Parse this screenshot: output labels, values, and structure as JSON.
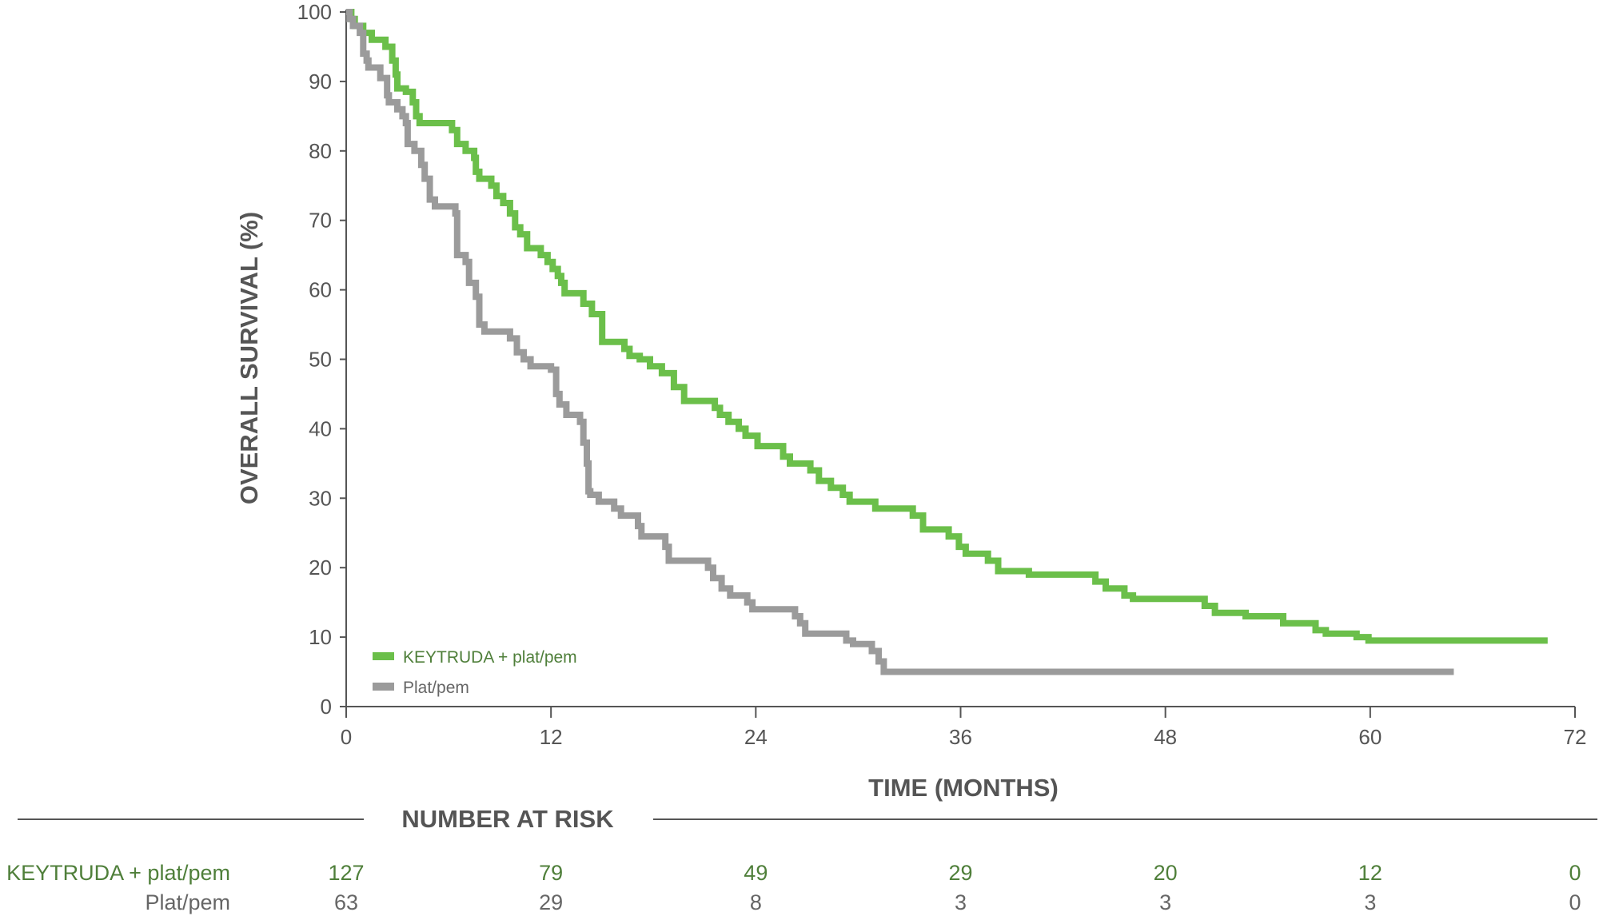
{
  "chart_data": {
    "type": "line",
    "subtype": "kaplan-meier step",
    "ylabel": "OVERALL SURVIVAL (%)",
    "xlabel": "TIME (MONTHS)",
    "ylim": [
      0,
      100
    ],
    "xlim": [
      0,
      72
    ],
    "y_ticks": [
      "0",
      "10",
      "20",
      "30",
      "40",
      "50",
      "60",
      "70",
      "80",
      "90",
      "100"
    ],
    "x_ticks": [
      "0",
      "12",
      "24",
      "36",
      "48",
      "60",
      "72"
    ],
    "grid": false,
    "legend_position": "bottom-left",
    "series": [
      {
        "name": "KEYTRUDA + plat/pem",
        "color": "#6bbf4a",
        "points": [
          [
            0,
            100
          ],
          [
            0.3,
            99
          ],
          [
            0.5,
            98
          ],
          [
            1,
            97
          ],
          [
            1.5,
            96
          ],
          [
            2.3,
            95
          ],
          [
            2.7,
            93
          ],
          [
            2.9,
            91
          ],
          [
            3,
            89
          ],
          [
            3.5,
            88.5
          ],
          [
            3.9,
            87
          ],
          [
            4.1,
            85
          ],
          [
            4.3,
            84
          ],
          [
            6,
            84
          ],
          [
            6.2,
            83
          ],
          [
            6.5,
            81
          ],
          [
            7,
            80
          ],
          [
            7.5,
            79
          ],
          [
            7.6,
            77
          ],
          [
            7.8,
            76
          ],
          [
            8.5,
            75
          ],
          [
            8.8,
            73.5
          ],
          [
            9.2,
            72.5
          ],
          [
            9.6,
            71
          ],
          [
            9.9,
            69
          ],
          [
            10.2,
            68
          ],
          [
            10.6,
            66
          ],
          [
            11.4,
            65
          ],
          [
            11.8,
            64
          ],
          [
            12.1,
            63
          ],
          [
            12.4,
            62
          ],
          [
            12.6,
            61
          ],
          [
            12.8,
            59.5
          ],
          [
            13.9,
            58
          ],
          [
            14.4,
            56.5
          ],
          [
            15,
            52.5
          ],
          [
            16.3,
            51.5
          ],
          [
            16.6,
            50.5
          ],
          [
            17.2,
            50
          ],
          [
            17.8,
            49
          ],
          [
            18.5,
            48
          ],
          [
            19.2,
            46
          ],
          [
            19.8,
            44
          ],
          [
            21.6,
            43
          ],
          [
            21.9,
            42
          ],
          [
            22.4,
            41
          ],
          [
            23,
            40
          ],
          [
            23.4,
            39
          ],
          [
            24.1,
            37.5
          ],
          [
            25.6,
            36
          ],
          [
            26,
            35
          ],
          [
            27.2,
            34
          ],
          [
            27.7,
            32.5
          ],
          [
            28.4,
            31.5
          ],
          [
            29.1,
            30.5
          ],
          [
            29.5,
            29.5
          ],
          [
            31,
            28.5
          ],
          [
            33.2,
            27.5
          ],
          [
            33.8,
            25.5
          ],
          [
            35.3,
            24.5
          ],
          [
            35.9,
            23
          ],
          [
            36.3,
            22
          ],
          [
            37.6,
            21
          ],
          [
            38.2,
            19.5
          ],
          [
            40,
            19
          ],
          [
            43.9,
            18
          ],
          [
            44.5,
            17
          ],
          [
            45.6,
            16
          ],
          [
            46.1,
            15.5
          ],
          [
            50.3,
            14.5
          ],
          [
            50.9,
            13.5
          ],
          [
            52.7,
            13
          ],
          [
            54.9,
            12
          ],
          [
            56.8,
            11
          ],
          [
            57.4,
            10.5
          ],
          [
            59.2,
            10
          ],
          [
            59.9,
            9.5
          ],
          [
            70.4,
            9.5
          ]
        ]
      },
      {
        "name": "Plat/pem",
        "color": "#9b9b9b",
        "points": [
          [
            0,
            100
          ],
          [
            0.2,
            99
          ],
          [
            0.4,
            98
          ],
          [
            0.8,
            97
          ],
          [
            1,
            94
          ],
          [
            1.2,
            93
          ],
          [
            1.3,
            92
          ],
          [
            2,
            90.5
          ],
          [
            2.4,
            88
          ],
          [
            2.5,
            87
          ],
          [
            3,
            86
          ],
          [
            3.3,
            85
          ],
          [
            3.5,
            84
          ],
          [
            3.6,
            81
          ],
          [
            4,
            80
          ],
          [
            4.4,
            78
          ],
          [
            4.6,
            76
          ],
          [
            4.9,
            73
          ],
          [
            5.2,
            72
          ],
          [
            6.4,
            71
          ],
          [
            6.5,
            65
          ],
          [
            7,
            64
          ],
          [
            7.2,
            61
          ],
          [
            7.6,
            59
          ],
          [
            7.8,
            55
          ],
          [
            8.1,
            54
          ],
          [
            9.6,
            53
          ],
          [
            10,
            51
          ],
          [
            10.4,
            50
          ],
          [
            10.8,
            49
          ],
          [
            12,
            48.5
          ],
          [
            12.3,
            45
          ],
          [
            12.5,
            43.5
          ],
          [
            12.9,
            42
          ],
          [
            13.7,
            41
          ],
          [
            13.9,
            38
          ],
          [
            14.1,
            35
          ],
          [
            14.2,
            31
          ],
          [
            14.3,
            30.5
          ],
          [
            14.8,
            29.5
          ],
          [
            15.7,
            28.5
          ],
          [
            16.1,
            27.5
          ],
          [
            17.1,
            26
          ],
          [
            17.3,
            24.5
          ],
          [
            18.7,
            23
          ],
          [
            18.9,
            21
          ],
          [
            21.2,
            20
          ],
          [
            21.5,
            18.5
          ],
          [
            22,
            17
          ],
          [
            22.5,
            16
          ],
          [
            23.5,
            15
          ],
          [
            23.8,
            14
          ],
          [
            26.3,
            13
          ],
          [
            26.6,
            12
          ],
          [
            26.9,
            10.5
          ],
          [
            29.3,
            9.5
          ],
          [
            29.7,
            9
          ],
          [
            30.8,
            8
          ],
          [
            31.2,
            6.5
          ],
          [
            31.5,
            5
          ],
          [
            64.9,
            5
          ]
        ]
      }
    ],
    "number_at_risk": {
      "title": "NUMBER AT RISK",
      "timepoints": [
        0,
        12,
        24,
        36,
        48,
        60,
        72
      ],
      "rows": [
        {
          "label": "KEYTRUDA + plat/pem",
          "color": "#4f7f3a",
          "values": [
            "127",
            "79",
            "49",
            "29",
            "20",
            "12",
            "0"
          ]
        },
        {
          "label": "Plat/pem",
          "color": "#666666",
          "values": [
            "63",
            "29",
            "8",
            "3",
            "3",
            "3",
            "0"
          ]
        }
      ]
    }
  }
}
